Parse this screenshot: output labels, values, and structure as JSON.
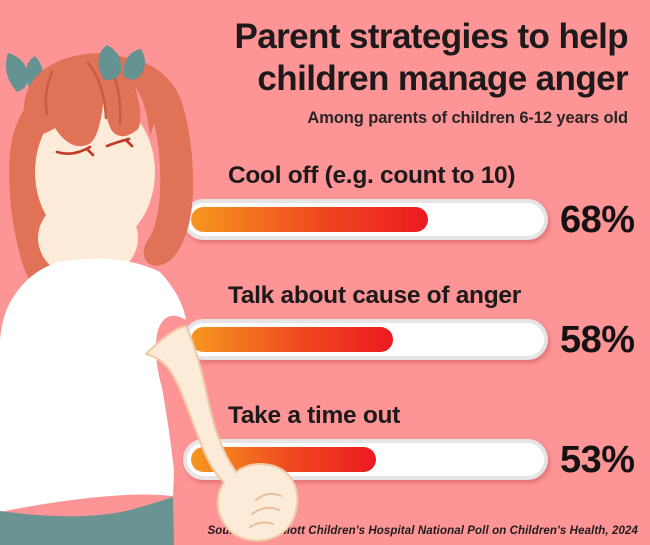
{
  "header": {
    "title_line1": "Parent strategies to help",
    "title_line2": "children manage anger",
    "subtitle": "Among parents of children 6-12 years old"
  },
  "chart_data": {
    "type": "bar",
    "orientation": "horizontal",
    "title": "Parent strategies to help children manage anger",
    "subtitle": "Among parents of children 6-12 years old",
    "categories": [
      "Cool off (e.g. count to 10)",
      "Talk about cause of anger",
      "Take a time out"
    ],
    "values": [
      68,
      58,
      53
    ],
    "unit": "%",
    "xlim": [
      0,
      100
    ],
    "grid": false,
    "legend": "none",
    "bars": [
      {
        "label": "Cool off (e.g. count to 10)",
        "value": 68,
        "display": "68%"
      },
      {
        "label": "Talk about cause of anger",
        "value": 58,
        "display": "58%"
      },
      {
        "label": "Take a time out",
        "value": 53,
        "display": "53%"
      }
    ],
    "bar_style": {
      "track_fill": "#FFFFFF",
      "track_border": "#E6E4E6",
      "gradient_start": "#F6971F",
      "gradient_end": "#EB1A21"
    }
  },
  "footer": {
    "source": "Source: C.S. Mott Children's Hospital National Poll on Children's Health, 2024"
  },
  "illustration": {
    "description": "angry girl with auburn pigtails, teal hair bows, white t-shirt, teal pants, clenched fist",
    "colors": {
      "background": "#FD9597",
      "hair": "#DF7257",
      "hair_strands": "#CB5A40",
      "skin": "#FCEBD8",
      "skin_outline": "#F0C9A5",
      "eyes": "#C13A27",
      "bows_and_pants": "#6B9392",
      "shirt": "#FFFFFF",
      "text": "#1E191A"
    }
  }
}
